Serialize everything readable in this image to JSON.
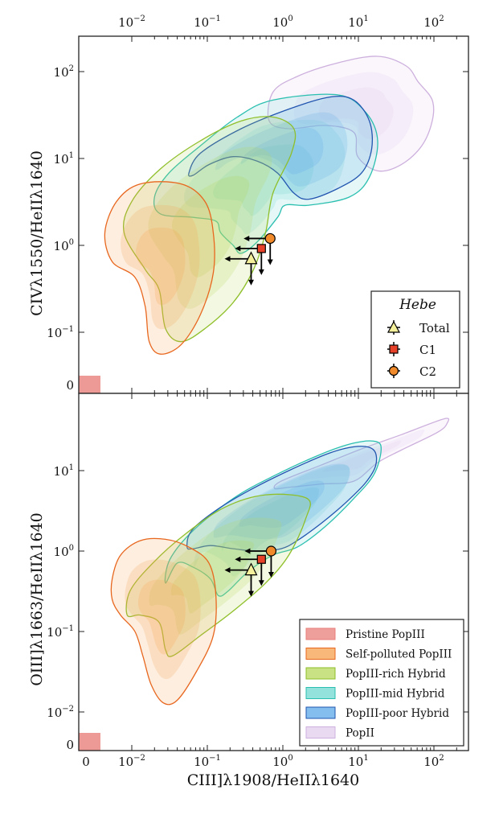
{
  "colors": {
    "Pristine PopIII": {
      "edge": "#e97f7a",
      "fill": "#e97f7a"
    },
    "Self-polluted PopIII": {
      "edge": "#e8671f",
      "fill": "#f6a04d"
    },
    "PopIII-rich Hybrid": {
      "edge": "#8fbf2a",
      "fill": "#b7d85a"
    },
    "PopIII-mid Hybrid": {
      "edge": "#2bbfb0",
      "fill": "#6fd8d0"
    },
    "PopIII-poor Hybrid": {
      "edge": "#2255b0",
      "fill": "#5aa8e8"
    },
    "PopII": {
      "edge": "#cdb0dd",
      "fill": "#e2cdee"
    }
  },
  "chart_data": [
    {
      "type": "scatter",
      "panel": "top",
      "ylabel": "CIVλ1550/HeIIλ1640",
      "xscale": "symlog",
      "yscale": "symlog",
      "xlim": [
        0,
        300
      ],
      "ylim": [
        0,
        250
      ],
      "x_ticks": [
        "10^-2",
        "10^-1",
        "10^0",
        "10^1",
        "10^2"
      ],
      "x_tick_position": "top",
      "y_ticks": [
        "0",
        "10^-1",
        "10^0",
        "10^1",
        "10^2"
      ],
      "legend": {
        "title": "Hebe",
        "position": "lower-right",
        "entries": [
          "Total",
          "C1",
          "C2"
        ]
      },
      "points": [
        {
          "name": "Total",
          "marker": "triangle",
          "color": "#f3ef9a",
          "x": 0.38,
          "y": 0.7,
          "upper_limit_x": true,
          "upper_limit_y": true
        },
        {
          "name": "C1",
          "marker": "square",
          "color": "#e8412a",
          "x": 0.52,
          "y": 0.92,
          "upper_limit_x": true,
          "upper_limit_y": true
        },
        {
          "name": "C2",
          "marker": "circle",
          "color": "#f08a2a",
          "x": 0.68,
          "y": 1.2,
          "upper_limit_x": true,
          "upper_limit_y": true
        }
      ],
      "contours": [
        {
          "name": "PopII",
          "outline": [
            [
              0.66,
              27
            ],
            [
              0.74,
              58
            ],
            [
              1.55,
              88
            ],
            [
              5.3,
              126
            ],
            [
              18,
              150
            ],
            [
              43,
              116
            ],
            [
              62,
              76
            ],
            [
              95,
              47
            ],
            [
              95,
              27
            ],
            [
              69,
              14
            ],
            [
              37,
              8.5
            ],
            [
              18,
              7.2
            ],
            [
              9.8,
              10.5
            ],
            [
              8.7,
              20
            ],
            [
              3.6,
              24
            ],
            [
              1.2,
              22
            ]
          ]
        },
        {
          "name": "PopIII-mid Hybrid",
          "outline": [
            [
              0.02,
              3.6
            ],
            [
              0.031,
              6.8
            ],
            [
              0.081,
              14
            ],
            [
              0.25,
              30
            ],
            [
              0.74,
              47
            ],
            [
              5.3,
              54
            ],
            [
              12.5,
              34
            ],
            [
              18,
              16
            ],
            [
              14,
              6.1
            ],
            [
              7.6,
              3.6
            ],
            [
              2.2,
              2.9
            ],
            [
              1.07,
              2.9
            ],
            [
              0.85,
              2.1
            ],
            [
              0.46,
              1.1
            ],
            [
              0.28,
              0.81
            ],
            [
              0.22,
              1
            ],
            [
              0.15,
              1.4
            ],
            [
              0.13,
              1.9
            ],
            [
              0.065,
              2.1
            ],
            [
              0.024,
              2.3
            ]
          ]
        },
        {
          "name": "PopIII-poor Hybrid",
          "outline": [
            [
              0.057,
              6.8
            ],
            [
              0.081,
              11.5
            ],
            [
              0.28,
              22
            ],
            [
              1.2,
              37
            ],
            [
              4.2,
              51
            ],
            [
              8.7,
              47
            ],
            [
              14,
              27
            ],
            [
              15,
              13
            ],
            [
              11,
              6.8
            ],
            [
              5.3,
              4.5
            ],
            [
              2.2,
              3.4
            ],
            [
              1.4,
              4
            ],
            [
              0.85,
              6.8
            ],
            [
              0.46,
              9.3
            ],
            [
              0.22,
              10.5
            ],
            [
              0.105,
              8.5
            ],
            [
              0.065,
              6.4
            ]
          ]
        },
        {
          "name": "PopIII-rich Hybrid",
          "outline": [
            [
              0.0079,
              1.4
            ],
            [
              0.01,
              3.2
            ],
            [
              0.024,
              7.6
            ],
            [
              0.081,
              16
            ],
            [
              0.28,
              27
            ],
            [
              0.74,
              30
            ],
            [
              1.4,
              22
            ],
            [
              1.3,
              11.5
            ],
            [
              0.74,
              4
            ],
            [
              0.59,
              1.4
            ],
            [
              0.41,
              0.53
            ],
            [
              0.22,
              0.22
            ],
            [
              0.093,
              0.11
            ],
            [
              0.045,
              0.078
            ],
            [
              0.028,
              0.11
            ],
            [
              0.023,
              0.31
            ],
            [
              0.015,
              0.53
            ]
          ]
        },
        {
          "name": "Self-polluted PopIII",
          "outline": [
            [
              0.0044,
              1.4
            ],
            [
              0.0063,
              3.2
            ],
            [
              0.013,
              5.1
            ],
            [
              0.045,
              5.1
            ],
            [
              0.093,
              3.2
            ],
            [
              0.12,
              1.4
            ],
            [
              0.12,
              0.48
            ],
            [
              0.081,
              0.16
            ],
            [
              0.045,
              0.072
            ],
            [
              0.024,
              0.056
            ],
            [
              0.017,
              0.078
            ],
            [
              0.015,
              0.2
            ],
            [
              0.011,
              0.43
            ],
            [
              0.0055,
              0.65
            ]
          ]
        }
      ]
    },
    {
      "type": "scatter",
      "panel": "bottom",
      "xlabel": "CIII]λ1908/HeIIλ1640",
      "ylabel": "OIII]λ1663/HeIIλ1640",
      "xscale": "symlog",
      "yscale": "symlog",
      "xlim": [
        0,
        300
      ],
      "ylim": [
        0,
        60
      ],
      "x_ticks": [
        "0",
        "10^-2",
        "10^-1",
        "10^0",
        "10^1",
        "10^2"
      ],
      "y_ticks": [
        "0",
        "10^-2",
        "10^-1",
        "10^0",
        "10^1"
      ],
      "legend": {
        "position": "lower-right",
        "entries": [
          "Pristine PopIII",
          "Self-polluted PopIII",
          "PopIII-rich Hybrid",
          "PopIII-mid Hybrid",
          "PopIII-poor Hybrid",
          "PopII"
        ]
      },
      "points": [
        {
          "name": "Total",
          "marker": "triangle",
          "color": "#f3ef9a",
          "x": 0.38,
          "y": 0.58,
          "upper_limit_x": true,
          "upper_limit_y": true
        },
        {
          "name": "C1",
          "marker": "square",
          "color": "#e8412a",
          "x": 0.52,
          "y": 0.79,
          "upper_limit_x": true,
          "upper_limit_y": true
        },
        {
          "name": "C2",
          "marker": "circle",
          "color": "#f08a2a",
          "x": 0.7,
          "y": 1.0,
          "upper_limit_x": true,
          "upper_limit_y": true
        }
      ],
      "contours": [
        {
          "name": "PopII",
          "outline": [
            [
              0.78,
              6
            ],
            [
              0.95,
              7.4
            ],
            [
              3.2,
              11.7
            ],
            [
              11,
              18.6
            ],
            [
              37,
              28
            ],
            [
              135,
              44
            ],
            [
              150,
              39
            ],
            [
              112,
              30
            ],
            [
              37,
              18
            ],
            [
              18,
              12.6
            ],
            [
              8.7,
              7.4
            ],
            [
              3.2,
              6.8
            ],
            [
              1.2,
              6.2
            ]
          ]
        },
        {
          "name": "PopIII-mid Hybrid",
          "outline": [
            [
              0.028,
              0.4
            ],
            [
              0.032,
              0.79
            ],
            [
              0.065,
              1.8
            ],
            [
              0.22,
              4.5
            ],
            [
              0.74,
              8.5
            ],
            [
              3.2,
              16
            ],
            [
              8.7,
              22
            ],
            [
              17,
              23
            ],
            [
              20,
              18
            ],
            [
              16,
              8.9
            ],
            [
              8.7,
              4.5
            ],
            [
              3.6,
              2
            ],
            [
              1.55,
              1.12
            ],
            [
              0.74,
              0.89
            ],
            [
              0.35,
              0.56
            ],
            [
              0.19,
              0.32
            ],
            [
              0.14,
              0.28
            ],
            [
              0.11,
              0.45
            ],
            [
              0.065,
              0.63
            ],
            [
              0.04,
              0.71
            ]
          ]
        },
        {
          "name": "PopIII-poor Hybrid",
          "outline": [
            [
              0.054,
              1.12
            ],
            [
              0.062,
              1.8
            ],
            [
              0.13,
              3.2
            ],
            [
              0.35,
              5.6
            ],
            [
              1.2,
              10
            ],
            [
              4.2,
              16.6
            ],
            [
              9.8,
              20
            ],
            [
              16,
              18
            ],
            [
              17,
              11.7
            ],
            [
              12.5,
              7.1
            ],
            [
              6.8,
              4
            ],
            [
              3.2,
              2.2
            ],
            [
              1.55,
              1.35
            ],
            [
              0.95,
              1.07
            ],
            [
              0.46,
              1
            ],
            [
              0.22,
              1.07
            ],
            [
              0.11,
              1.17
            ],
            [
              0.065,
              1.07
            ]
          ]
        },
        {
          "name": "PopIII-rich Hybrid",
          "outline": [
            [
              0.0087,
              0.16
            ],
            [
              0.0095,
              0.32
            ],
            [
              0.019,
              0.71
            ],
            [
              0.05,
              1.6
            ],
            [
              0.17,
              3.5
            ],
            [
              0.59,
              5
            ],
            [
              2.1,
              4.5
            ],
            [
              2,
              2.5
            ],
            [
              1.2,
              0.89
            ],
            [
              0.59,
              0.4
            ],
            [
              0.22,
              0.18
            ],
            [
              0.081,
              0.089
            ],
            [
              0.035,
              0.05
            ],
            [
              0.028,
              0.059
            ],
            [
              0.023,
              0.13
            ],
            [
              0.013,
              0.16
            ]
          ]
        },
        {
          "name": "Self-polluted PopIII",
          "outline": [
            [
              0.0055,
              0.45
            ],
            [
              0.0071,
              0.89
            ],
            [
              0.013,
              1.35
            ],
            [
              0.028,
              1.4
            ],
            [
              0.057,
              1.12
            ],
            [
              0.105,
              0.71
            ],
            [
              0.13,
              0.28
            ],
            [
              0.12,
              0.089
            ],
            [
              0.072,
              0.032
            ],
            [
              0.04,
              0.014
            ],
            [
              0.026,
              0.013
            ],
            [
              0.018,
              0.022
            ],
            [
              0.014,
              0.05
            ],
            [
              0.011,
              0.1
            ],
            [
              0.0071,
              0.16
            ],
            [
              0.0055,
              0.25
            ]
          ]
        }
      ]
    }
  ],
  "labels": {
    "top_ylabel": "CIVλ1550/HeIIλ1640",
    "bottom_ylabel": "OIII]λ1663/HeIIλ1640",
    "xlabel": "CIII]λ1908/HeIIλ1640",
    "hebe_title": "Hebe",
    "hebe_entries": [
      "Total",
      "C1",
      "C2"
    ],
    "pop_entries": [
      "Pristine PopIII",
      "Self-polluted PopIII",
      "PopIII-rich Hybrid",
      "PopIII-mid Hybrid",
      "PopIII-poor Hybrid",
      "PopII"
    ],
    "zero": "0"
  }
}
